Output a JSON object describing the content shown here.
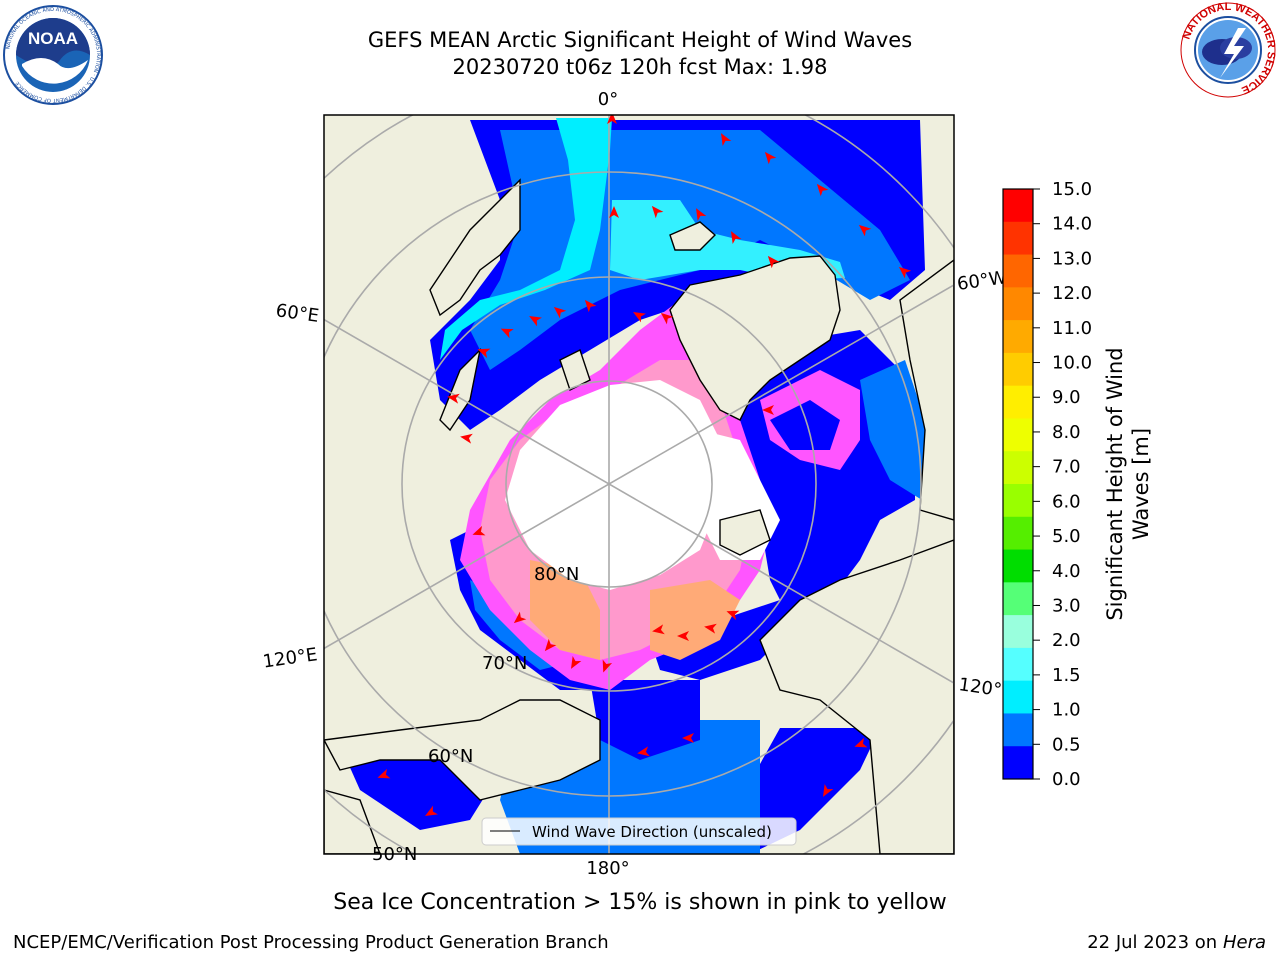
{
  "title": {
    "line1": "GEFS MEAN Arctic Significant Height of Wind Waves",
    "line2": "20230720 t06z 120h fcst   Max: 1.98"
  },
  "logos": {
    "left": {
      "name": "NOAA",
      "text": "NOAA",
      "ring_text": "NATIONAL OCEANIC AND ATMOSPHERIC ADMINISTRATION · U.S. DEPARTMENT OF COMMERCE"
    },
    "right": {
      "name": "National Weather Service",
      "ring_text": "NATIONAL WEATHER SERVICE"
    }
  },
  "map": {
    "projection": "north-polar-stereographic",
    "longitude_labels": [
      "0°",
      "60°W",
      "120°W",
      "180°",
      "120°E",
      "60°E"
    ],
    "latitude_labels": [
      "80°N",
      "70°N",
      "60°N",
      "50°N"
    ],
    "legend_label": "Wind Wave Direction (unscaled)",
    "colors": {
      "land": "#efefde",
      "pole_ice": "#ffffff",
      "grid": "#aaaaaa",
      "arrow": "#ff0000",
      "sea_ice": [
        "#ff55ff",
        "#ff99cc",
        "#ffaa77"
      ]
    }
  },
  "colorbar": {
    "label_line1": "Significant Height of Wind",
    "label_line2": "Waves [m]",
    "ticks": [
      "15.0",
      "14.0",
      "13.0",
      "12.0",
      "11.0",
      "10.0",
      "9.0",
      "8.0",
      "7.0",
      "6.0",
      "5.0",
      "4.0",
      "3.0",
      "2.0",
      "1.5",
      "1.0",
      "0.5",
      "0.0"
    ],
    "colors": [
      "#ff0000",
      "#ff3300",
      "#ff6600",
      "#ff8800",
      "#ffaa00",
      "#ffcc00",
      "#ffee00",
      "#eeff00",
      "#ccff00",
      "#99ff00",
      "#55ee00",
      "#00dd00",
      "#55ff77",
      "#99ffdd",
      "#55ffff",
      "#00eeff",
      "#0077ff",
      "#0000ff"
    ]
  },
  "caption": "Sea Ice Concentration > 15% is shown in pink to yellow",
  "footer": {
    "left": "NCEP/EMC/Verification Post Processing Product Generation Branch",
    "date": "22 Jul 2023 on ",
    "machine": "Hera"
  }
}
